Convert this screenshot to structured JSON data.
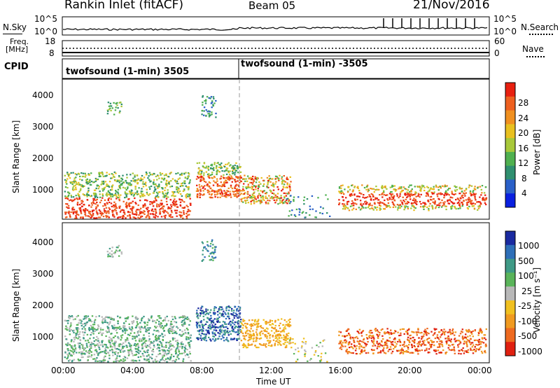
{
  "header": {
    "station": "Rankin Inlet (fitACF)",
    "beam": "Beam 05",
    "date": "21/Nov/2016"
  },
  "noise_panel": {
    "left_label": "N.Sky",
    "right_label": "N.Search",
    "left_ticks": [
      "10^5",
      "10^0"
    ],
    "right_ticks": [
      "10^5",
      "10^0"
    ]
  },
  "freq_panel": {
    "left_label_line1": "Freq.",
    "left_label_line2": "[MHz]",
    "right_label": "Nave",
    "left_ticks": [
      "18",
      "8"
    ],
    "right_ticks": [
      "60",
      "0"
    ]
  },
  "cpid_panel": {
    "label": "CPID",
    "entries": [
      "twofsound (1-min) 3505",
      "twofsound (1-min) -3505"
    ]
  },
  "chart_data": [
    {
      "type": "heatmap",
      "title": "",
      "xlabel": "Time UT",
      "ylabel": "Slant Range [km]",
      "x_ticks": [
        "00:00",
        "04:00",
        "08:00",
        "12:00",
        "16:00",
        "20:00",
        "00:00"
      ],
      "y_ticks": [
        "1000",
        "2000",
        "3000",
        "4000"
      ],
      "ylim": [
        200,
        4600
      ],
      "colorbar": {
        "label": "Power [dB]",
        "ticks": [
          "4",
          "8",
          "12",
          "16",
          "20",
          "24",
          "28"
        ],
        "colors": [
          "#0a20e0",
          "#2a60c8",
          "#2f8f6f",
          "#4fb04f",
          "#a8c83a",
          "#e8c020",
          "#f09020",
          "#ee6020",
          "#e82010"
        ]
      }
    },
    {
      "type": "heatmap",
      "title": "",
      "xlabel": "Time UT",
      "ylabel": "Slant Range [km]",
      "x_ticks": [
        "00:00",
        "04:00",
        "08:00",
        "12:00",
        "16:00",
        "20:00",
        "00:00"
      ],
      "y_ticks": [
        "1000",
        "2000",
        "3000",
        "4000"
      ],
      "ylim": [
        200,
        4600
      ],
      "colorbar": {
        "label": "Velocity [m s⁻¹]",
        "ticks": [
          "1000",
          "500",
          "100",
          "25",
          "-25",
          "-100",
          "-500",
          "-1000"
        ],
        "colors": [
          "#1a2aa0",
          "#2e6fb8",
          "#3f9a86",
          "#5ab45a",
          "#b8b8b8",
          "#f0c020",
          "#f09a20",
          "#ee6a20",
          "#e02010"
        ]
      }
    }
  ]
}
